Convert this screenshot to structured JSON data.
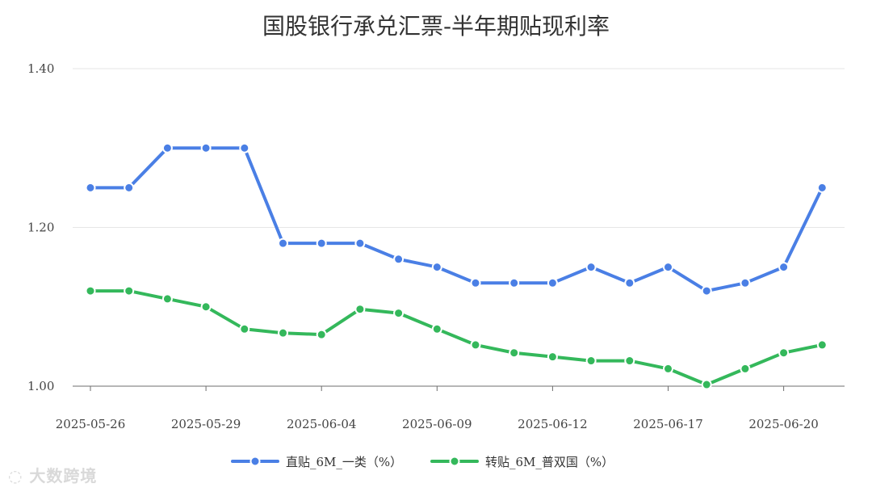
{
  "chart_data": {
    "type": "line",
    "title": "国股银行承兑汇票-半年期贴现利率",
    "x": [
      "2025-05-26",
      "2025-05-27",
      "2025-05-28",
      "2025-05-29",
      "2025-05-30",
      "2025-06-03",
      "2025-06-04",
      "2025-06-05",
      "2025-06-06",
      "2025-06-09",
      "2025-06-10",
      "2025-06-11",
      "2025-06-12",
      "2025-06-13",
      "2025-06-16",
      "2025-06-17",
      "2025-06-18",
      "2025-06-19",
      "2025-06-20",
      "2025-06-23"
    ],
    "x_tick_labels": [
      "2025-05-26",
      "2025-05-29",
      "2025-06-04",
      "2025-06-09",
      "2025-06-12",
      "2025-06-17",
      "2025-06-20"
    ],
    "x_tick_label_indices": [
      0,
      3,
      6,
      9,
      12,
      15,
      18
    ],
    "y_ticks": [
      "1.00",
      "1.20",
      "1.40"
    ],
    "ylim": [
      1.0,
      1.4
    ],
    "legend_position": "bottom-center",
    "series": [
      {
        "name": "直贴_6M_一类（%）",
        "color": "#4A7FE5",
        "values": [
          1.25,
          1.25,
          1.3,
          1.3,
          1.3,
          1.18,
          1.18,
          1.18,
          1.16,
          1.15,
          1.13,
          1.13,
          1.13,
          1.15,
          1.13,
          1.15,
          1.12,
          1.13,
          1.15,
          1.25
        ]
      },
      {
        "name": "转贴_6M_普双国（%）",
        "color": "#34B85B",
        "values": [
          1.12,
          1.12,
          1.11,
          1.1,
          1.072,
          1.067,
          1.065,
          1.097,
          1.092,
          1.072,
          1.052,
          1.042,
          1.037,
          1.032,
          1.032,
          1.022,
          1.002,
          1.022,
          1.042,
          1.052
        ]
      }
    ]
  },
  "watermark": "大数跨境",
  "watermark_icon": "brand-logo-icon"
}
